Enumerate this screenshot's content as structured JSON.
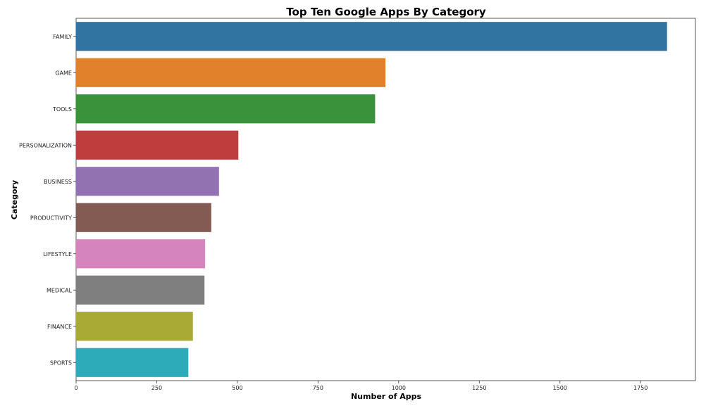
{
  "chart_data": {
    "type": "bar",
    "orientation": "horizontal",
    "title": "Top Ten Google Apps By Category",
    "xlabel": "Number of Apps",
    "ylabel": "Category",
    "categories": [
      "FAMILY",
      "GAME",
      "TOOLS",
      "PERSONALIZATION",
      "BUSINESS",
      "PRODUCTIVITY",
      "LIFESTYLE",
      "MEDICAL",
      "FINANCE",
      "SPORTS"
    ],
    "values": [
      1832,
      959,
      927,
      503,
      443,
      419,
      400,
      398,
      362,
      348
    ],
    "xticks": [
      0,
      250,
      500,
      750,
      1000,
      1250,
      1500,
      1750
    ],
    "xlim": [
      0,
      1920
    ],
    "grid": false,
    "legend": "none",
    "colors": [
      "#3274a1",
      "#e1812c",
      "#3a923a",
      "#c03d3e",
      "#9372b2",
      "#845b53",
      "#d684bd",
      "#7f7f7f",
      "#a9aa35",
      "#2eabb8"
    ]
  }
}
